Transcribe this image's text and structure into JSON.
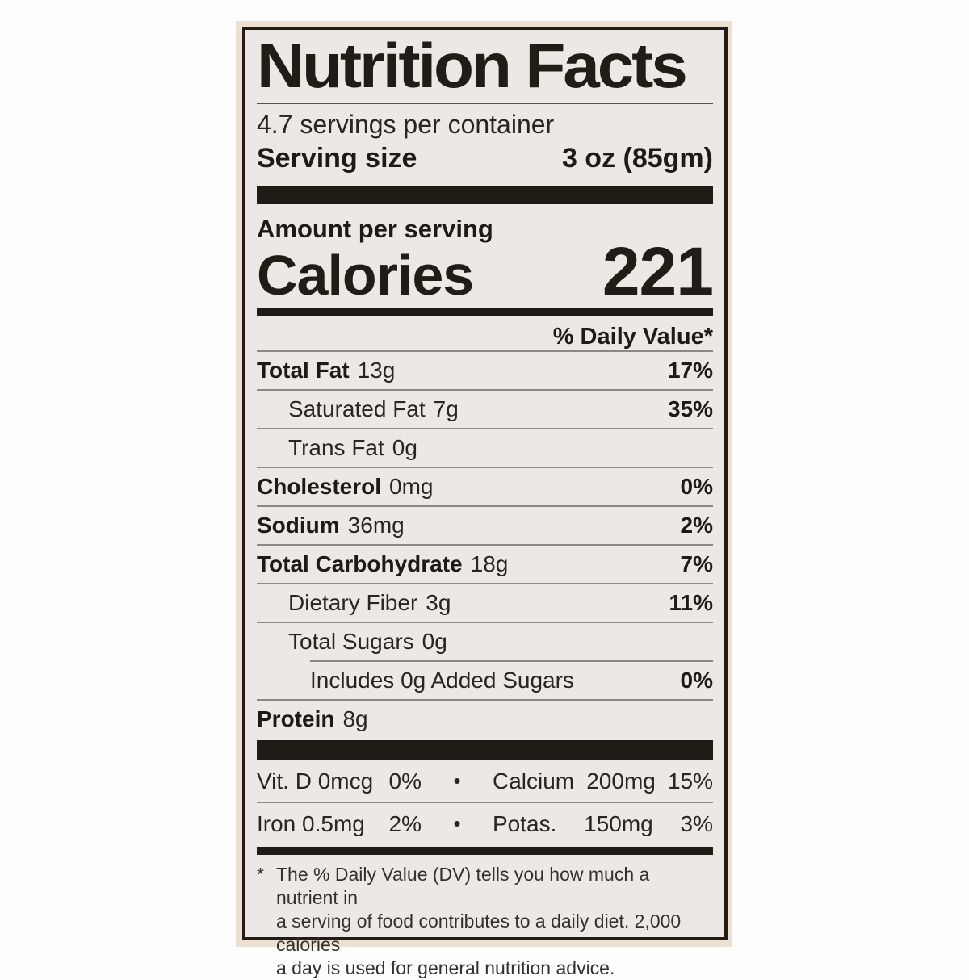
{
  "label": {
    "title": "Nutrition Facts",
    "servings_per_container": "4.7 servings per container",
    "serving_size_label": "Serving size",
    "serving_size_value": "3 oz (85gm)",
    "amount_per_serving": "Amount per serving",
    "calories_label": "Calories",
    "calories_value": "221",
    "daily_value_header": "% Daily Value*",
    "nutrients": [
      {
        "name": "Total Fat",
        "amount": "13g",
        "daily_value": "17%",
        "emphasis": true,
        "indent": 0,
        "divider_after": "full"
      },
      {
        "name": "Saturated Fat",
        "amount": "7g",
        "daily_value": "35%",
        "emphasis": false,
        "indent": 1,
        "divider_after": "full"
      },
      {
        "name": "Trans Fat",
        "amount": "0g",
        "daily_value": "",
        "emphasis": false,
        "indent": 1,
        "divider_after": "full"
      },
      {
        "name": "Cholesterol",
        "amount": "0mg",
        "daily_value": "0%",
        "emphasis": true,
        "indent": 0,
        "divider_after": "full"
      },
      {
        "name": "Sodium",
        "amount": "36mg",
        "daily_value": "2%",
        "emphasis": true,
        "indent": 0,
        "divider_after": "full"
      },
      {
        "name": "Total Carbohydrate",
        "amount": "18g",
        "daily_value": "7%",
        "emphasis": true,
        "indent": 0,
        "divider_after": "full"
      },
      {
        "name": "Dietary Fiber",
        "amount": "3g",
        "daily_value": "11%",
        "emphasis": false,
        "indent": 1,
        "divider_after": "full"
      },
      {
        "name": "Total Sugars",
        "amount": "0g",
        "daily_value": "",
        "emphasis": false,
        "indent": 1,
        "divider_after": "indented"
      },
      {
        "name": "Includes 0g Added Sugars",
        "amount": "",
        "daily_value": "0%",
        "emphasis": false,
        "indent": 2,
        "divider_after": "full"
      },
      {
        "name": "Protein",
        "amount": "8g",
        "daily_value": "",
        "emphasis": true,
        "indent": 0,
        "divider_after": "none"
      }
    ],
    "separator_bullet": "•",
    "micronutrients": [
      {
        "left": {
          "name": "Vit. D",
          "amount": "0mcg",
          "daily_value": "0%"
        },
        "right": {
          "name": "Calcium",
          "amount": "200mg",
          "daily_value": "15%"
        }
      },
      {
        "left": {
          "name": "Iron",
          "amount": "0.5mg",
          "daily_value": "2%"
        },
        "right": {
          "name": "Potas.",
          "amount": "150mg",
          "daily_value": "3%"
        }
      }
    ],
    "footnote": {
      "asterisk": "*",
      "lines": [
        "The % Daily Value (DV) tells you how much a nutrient in",
        "a serving of food contributes to a daily diet. 2,000 calories",
        "a day is used for general nutrition advice."
      ]
    }
  },
  "colors": {
    "page_background": "#fdfdfd",
    "label_paper_edge": "#eee0d3",
    "label_background": "#ece8e6",
    "ink_black": "#221c17",
    "text": "#2b2521",
    "hairline": "#8d8885"
  }
}
